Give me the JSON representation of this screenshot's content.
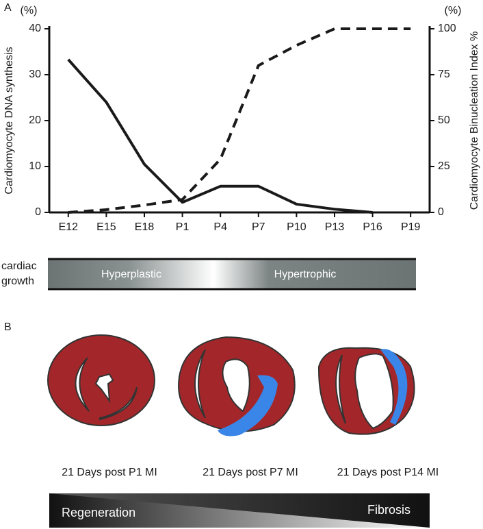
{
  "panel_labels": [
    "A",
    "B"
  ],
  "chart_data": {
    "type": "line",
    "ylabel": "Cardiomyocyte DNA synthesis",
    "y2label": "Cardiomyocyte Binucleation Index %",
    "yunit": "(%)",
    "y2unit": "(%)",
    "categories": [
      "E12",
      "E15",
      "E18",
      "P1",
      "P4",
      "P7",
      "P10",
      "P13",
      "P16",
      "P19"
    ],
    "series": [
      {
        "color": "#1a1a1a",
        "dashed": false,
        "values": [
          33.3,
          24,
          10.5,
          2.2,
          5.7,
          5.7,
          1.8,
          0.7,
          0,
          null
        ]
      },
      {
        "color": "#1a1a1a",
        "dashed": true,
        "axis": "y2",
        "values": [
          0,
          1.5,
          4,
          7,
          29,
          80,
          91,
          100,
          100,
          100
        ]
      }
    ],
    "ylim": [
      0,
      40
    ],
    "yticks": [
      0,
      10,
      20,
      30,
      40
    ],
    "y2lim": [
      0,
      100
    ],
    "y2ticks": [
      0,
      25,
      50,
      75,
      100
    ]
  },
  "growth_bar": {
    "label": [
      "cardiac",
      "growth"
    ],
    "left": "Hyperplastic",
    "right": "Hypertrophic"
  },
  "panel_b": {
    "captions": [
      "21 Days post P1 MI",
      "21 Days post P7 MI",
      "21 Days post P14 MI"
    ],
    "gradient_left": "Regeneration",
    "gradient_right": "Fibrosis"
  }
}
